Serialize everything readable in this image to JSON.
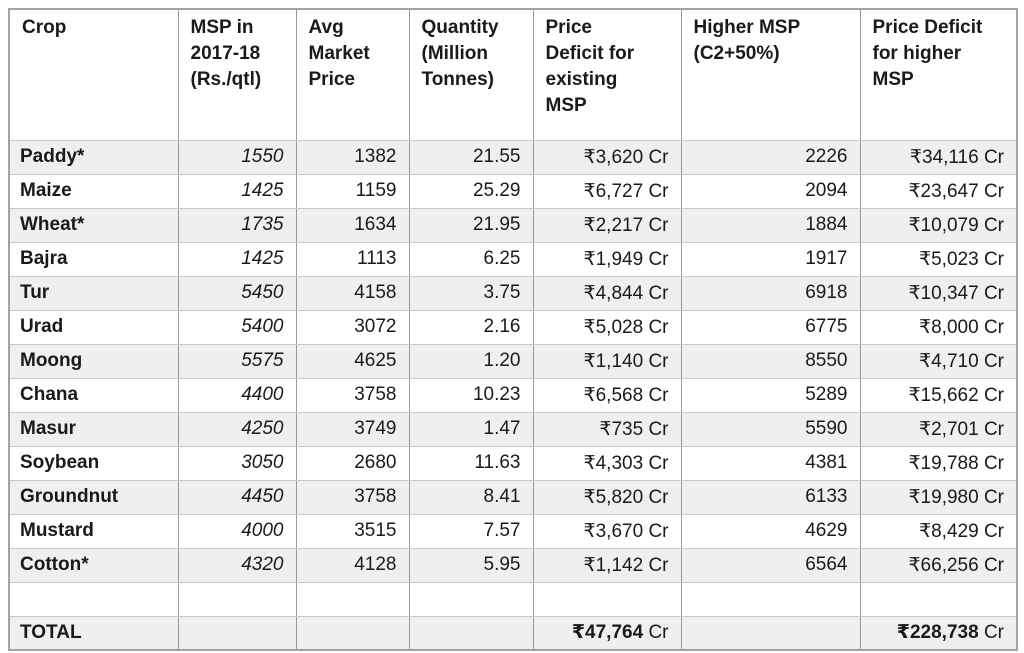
{
  "table": {
    "columns": [
      {
        "key": "crop",
        "label": "Crop"
      },
      {
        "key": "msp",
        "label": "MSP in\n2017-18\n(Rs./qtl)"
      },
      {
        "key": "avg_price",
        "label": "Avg\nMarket\nPrice"
      },
      {
        "key": "quantity",
        "label": "Quantity\n(Million\nTonnes)"
      },
      {
        "key": "deficit_existing",
        "label": "Price\nDeficit for\nexisting\nMSP"
      },
      {
        "key": "higher_msp",
        "label": "Higher MSP\n(C2+50%)"
      },
      {
        "key": "deficit_higher",
        "label": "Price Deficit\nfor higher\nMSP"
      }
    ],
    "rows": [
      [
        "Paddy*",
        "1550",
        "1382",
        "21.55",
        "₹3,620 Cr",
        "2226",
        "₹34,116 Cr"
      ],
      [
        "Maize",
        "1425",
        "1159",
        "25.29",
        "₹6,727 Cr",
        "2094",
        "₹23,647 Cr"
      ],
      [
        "Wheat*",
        "1735",
        "1634",
        "21.95",
        "₹2,217 Cr",
        "1884",
        "₹10,079 Cr"
      ],
      [
        "Bajra",
        "1425",
        "1113",
        "6.25",
        "₹1,949 Cr",
        "1917",
        "₹5,023 Cr"
      ],
      [
        "Tur",
        "5450",
        "4158",
        "3.75",
        "₹4,844 Cr",
        "6918",
        "₹10,347 Cr"
      ],
      [
        "Urad",
        "5400",
        "3072",
        "2.16",
        "₹5,028 Cr",
        "6775",
        "₹8,000 Cr"
      ],
      [
        "Moong",
        "5575",
        "4625",
        "1.20",
        "₹1,140 Cr",
        "8550",
        "₹4,710 Cr"
      ],
      [
        "Chana",
        "4400",
        "3758",
        "10.23",
        "₹6,568 Cr",
        "5289",
        "₹15,662 Cr"
      ],
      [
        "Masur",
        "4250",
        "3749",
        "1.47",
        "₹735 Cr",
        "5590",
        "₹2,701 Cr"
      ],
      [
        "Soybean",
        "3050",
        "2680",
        "11.63",
        "₹4,303 Cr",
        "4381",
        "₹19,788 Cr"
      ],
      [
        "Groundnut",
        "4450",
        "3758",
        "8.41",
        "₹5,820 Cr",
        "6133",
        "₹19,980 Cr"
      ],
      [
        "Mustard",
        "4000",
        "3515",
        "7.57",
        "₹3,670 Cr",
        "4629",
        "₹8,429 Cr"
      ],
      [
        "Cotton*",
        "4320",
        "4128",
        "5.95",
        "₹1,142 Cr",
        "6564",
        "₹66,256 Cr"
      ]
    ],
    "total_row": {
      "label": "TOTAL",
      "existing_value": "₹47,764",
      "higher_value": "₹228,738",
      "unit_suffix": " Cr"
    }
  },
  "chart_data": {
    "type": "table",
    "columns": [
      "Crop",
      "MSP in 2017-18 (Rs./qtl)",
      "Avg Market Price",
      "Quantity (Million Tonnes)",
      "Price Deficit for existing MSP",
      "Higher MSP (C2+50%)",
      "Price Deficit for higher MSP"
    ],
    "rows": [
      {
        "crop": "Paddy*",
        "msp_2017_18": 1550,
        "avg_market_price": 1382,
        "quantity_million_tonnes": 21.55,
        "price_deficit_existing_cr": 3620,
        "higher_msp_c2_plus_50pct": 2226,
        "price_deficit_higher_cr": 34116
      },
      {
        "crop": "Maize",
        "msp_2017_18": 1425,
        "avg_market_price": 1159,
        "quantity_million_tonnes": 25.29,
        "price_deficit_existing_cr": 6727,
        "higher_msp_c2_plus_50pct": 2094,
        "price_deficit_higher_cr": 23647
      },
      {
        "crop": "Wheat*",
        "msp_2017_18": 1735,
        "avg_market_price": 1634,
        "quantity_million_tonnes": 21.95,
        "price_deficit_existing_cr": 2217,
        "higher_msp_c2_plus_50pct": 1884,
        "price_deficit_higher_cr": 10079
      },
      {
        "crop": "Bajra",
        "msp_2017_18": 1425,
        "avg_market_price": 1113,
        "quantity_million_tonnes": 6.25,
        "price_deficit_existing_cr": 1949,
        "higher_msp_c2_plus_50pct": 1917,
        "price_deficit_higher_cr": 5023
      },
      {
        "crop": "Tur",
        "msp_2017_18": 5450,
        "avg_market_price": 4158,
        "quantity_million_tonnes": 3.75,
        "price_deficit_existing_cr": 4844,
        "higher_msp_c2_plus_50pct": 6918,
        "price_deficit_higher_cr": 10347
      },
      {
        "crop": "Urad",
        "msp_2017_18": 5400,
        "avg_market_price": 3072,
        "quantity_million_tonnes": 2.16,
        "price_deficit_existing_cr": 5028,
        "higher_msp_c2_plus_50pct": 6775,
        "price_deficit_higher_cr": 8000
      },
      {
        "crop": "Moong",
        "msp_2017_18": 5575,
        "avg_market_price": 4625,
        "quantity_million_tonnes": 1.2,
        "price_deficit_existing_cr": 1140,
        "higher_msp_c2_plus_50pct": 8550,
        "price_deficit_higher_cr": 4710
      },
      {
        "crop": "Chana",
        "msp_2017_18": 4400,
        "avg_market_price": 3758,
        "quantity_million_tonnes": 10.23,
        "price_deficit_existing_cr": 6568,
        "higher_msp_c2_plus_50pct": 5289,
        "price_deficit_higher_cr": 15662
      },
      {
        "crop": "Masur",
        "msp_2017_18": 4250,
        "avg_market_price": 3749,
        "quantity_million_tonnes": 1.47,
        "price_deficit_existing_cr": 735,
        "higher_msp_c2_plus_50pct": 5590,
        "price_deficit_higher_cr": 2701
      },
      {
        "crop": "Soybean",
        "msp_2017_18": 3050,
        "avg_market_price": 2680,
        "quantity_million_tonnes": 11.63,
        "price_deficit_existing_cr": 4303,
        "higher_msp_c2_plus_50pct": 4381,
        "price_deficit_higher_cr": 19788
      },
      {
        "crop": "Groundnut",
        "msp_2017_18": 4450,
        "avg_market_price": 3758,
        "quantity_million_tonnes": 8.41,
        "price_deficit_existing_cr": 5820,
        "higher_msp_c2_plus_50pct": 6133,
        "price_deficit_higher_cr": 19980
      },
      {
        "crop": "Mustard",
        "msp_2017_18": 4000,
        "avg_market_price": 3515,
        "quantity_million_tonnes": 7.57,
        "price_deficit_existing_cr": 3670,
        "higher_msp_c2_plus_50pct": 4629,
        "price_deficit_higher_cr": 8429
      },
      {
        "crop": "Cotton*",
        "msp_2017_18": 4320,
        "avg_market_price": 4128,
        "quantity_million_tonnes": 5.95,
        "price_deficit_existing_cr": 1142,
        "higher_msp_c2_plus_50pct": 6564,
        "price_deficit_higher_cr": 66256
      }
    ],
    "totals": {
      "price_deficit_existing_cr": 47764,
      "price_deficit_higher_cr": 228738
    }
  },
  "colors": {
    "stripe_background": "#efefef",
    "grid_vertical": "#999999",
    "grid_horizontal": "#c9c9c9",
    "outer_border": "#a3a3a3",
    "text": "#1a1a1a",
    "header_background": "#ffffff"
  }
}
